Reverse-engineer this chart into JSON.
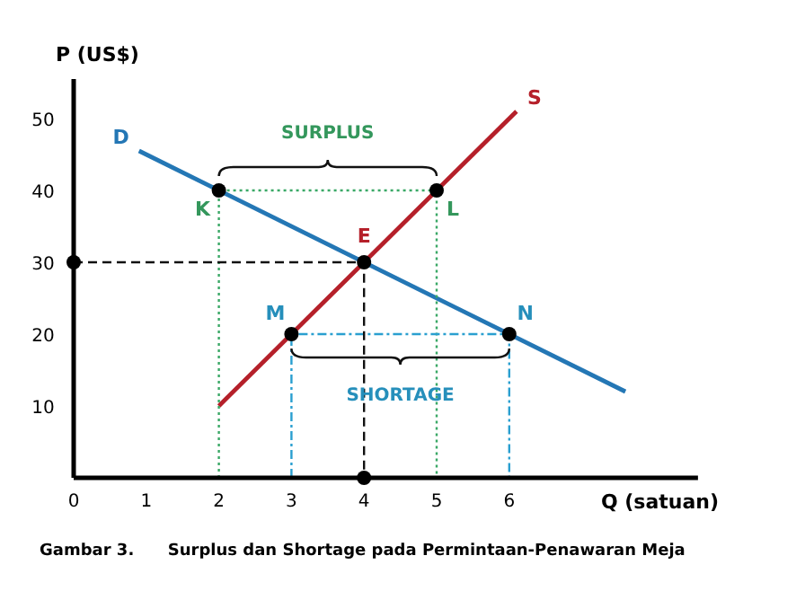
{
  "chart_data": {
    "type": "line",
    "xlabel": "Q (satuan)",
    "ylabel": "P (US$)",
    "xlim": [
      0,
      8.6
    ],
    "ylim": [
      0,
      55.5
    ],
    "xticks": [
      0,
      1,
      2,
      3,
      4,
      5,
      6
    ],
    "yticks": [
      10,
      20,
      30,
      40,
      50
    ],
    "series": [
      {
        "name": "D",
        "color": "#2477b5",
        "x": [
          0.9,
          7.6
        ],
        "values": [
          45.5,
          12
        ],
        "line_style": "solid"
      },
      {
        "name": "S",
        "color": "#b5202a",
        "x": [
          2,
          6.1
        ],
        "values": [
          10,
          51
        ],
        "line_style": "solid"
      },
      {
        "color": "#3aa866",
        "x": [
          2,
          2,
          5,
          5
        ],
        "values": [
          0,
          40,
          40,
          0
        ],
        "line_style": "dotted"
      },
      {
        "color": "#2a9fd0",
        "x": [
          3,
          3,
          6,
          6
        ],
        "values": [
          0,
          20,
          20,
          0
        ],
        "line_style": "dashdot"
      },
      {
        "color": "#111111",
        "x": [
          0,
          4,
          4
        ],
        "values": [
          30,
          30,
          0
        ],
        "line_style": "dashed"
      },
      {
        "type": "scatter",
        "color": "#000000",
        "marker": "circle",
        "x": [
          2,
          5,
          4,
          3,
          6,
          0,
          4
        ],
        "values": [
          40,
          40,
          30,
          20,
          20,
          30,
          0
        ]
      }
    ],
    "annotations": [
      "SURPLUS",
      "SHORTAGE",
      {
        "text": "K",
        "x": 2,
        "y": 40
      },
      {
        "text": "L",
        "x": 5,
        "y": 40
      },
      {
        "text": "E",
        "x": 4,
        "y": 30
      },
      {
        "text": "M",
        "x": 3,
        "y": 20
      },
      {
        "text": "N",
        "x": 6,
        "y": 20
      },
      "Gambar 3.      Surplus dan Shortage pada Permintaan-Penawaran Meja"
    ]
  }
}
